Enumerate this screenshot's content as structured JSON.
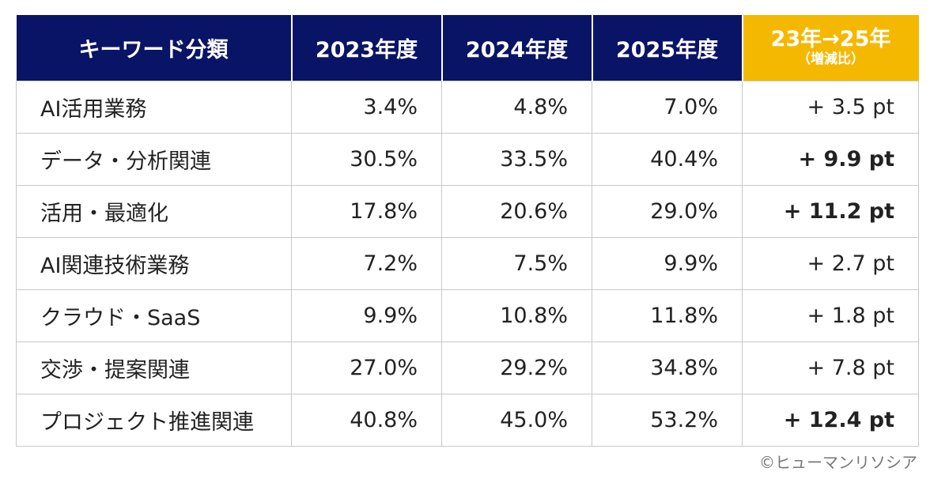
{
  "table": {
    "header": {
      "category": "キーワード分類",
      "y2023": "2023年度",
      "y2024": "2024年度",
      "y2025": "2025年度",
      "change_main": "23年→25年",
      "change_sub": "（増減比）"
    },
    "rows": [
      {
        "label": "AI活用業務",
        "v2023": "3.4%",
        "v2024": "4.8%",
        "v2025": "7.0%",
        "diff": "+ 3.5 pt",
        "bold": false
      },
      {
        "label": "データ・分析関連",
        "v2023": "30.5%",
        "v2024": "33.5%",
        "v2025": "40.4%",
        "diff": "+ 9.9 pt",
        "bold": true
      },
      {
        "label": "活用・最適化",
        "v2023": "17.8%",
        "v2024": "20.6%",
        "v2025": "29.0%",
        "diff": "+ 11.2 pt",
        "bold": true
      },
      {
        "label": "AI関連技術業務",
        "v2023": "7.2%",
        "v2024": "7.5%",
        "v2025": "9.9%",
        "diff": "+ 2.7 pt",
        "bold": false
      },
      {
        "label": "クラウド・SaaS",
        "v2023": "9.9%",
        "v2024": "10.8%",
        "v2025": "11.8%",
        "diff": "+ 1.8 pt",
        "bold": false
      },
      {
        "label": "交渉・提案関連",
        "v2023": "27.0%",
        "v2024": "29.2%",
        "v2025": "34.8%",
        "diff": "+ 7.8 pt",
        "bold": false
      },
      {
        "label": "プロジェクト推進関連",
        "v2023": "40.8%",
        "v2024": "45.0%",
        "v2025": "53.2%",
        "diff": "+ 12.4 pt",
        "bold": true
      }
    ]
  },
  "credit": "©ヒューマンリソシア",
  "colors": {
    "header_bg": "#0a1466",
    "highlight_bg": "#f5b800",
    "border": "#c8c8c8"
  },
  "chart_data": {
    "type": "table",
    "columns": [
      "キーワード分類",
      "2023年度",
      "2024年度",
      "2025年度",
      "23年→25年（増減比）"
    ],
    "rows": [
      [
        "AI活用業務",
        3.4,
        4.8,
        7.0,
        3.5
      ],
      [
        "データ・分析関連",
        30.5,
        33.5,
        40.4,
        9.9
      ],
      [
        "活用・最適化",
        17.8,
        20.6,
        29.0,
        11.2
      ],
      [
        "AI関連技術業務",
        7.2,
        7.5,
        9.9,
        2.7
      ],
      [
        "クラウド・SaaS",
        9.9,
        10.8,
        11.8,
        1.8
      ],
      [
        "交渉・提案関連",
        27.0,
        29.2,
        34.8,
        7.8
      ],
      [
        "プロジェクト推進関連",
        40.8,
        45.0,
        53.2,
        12.4
      ]
    ]
  }
}
